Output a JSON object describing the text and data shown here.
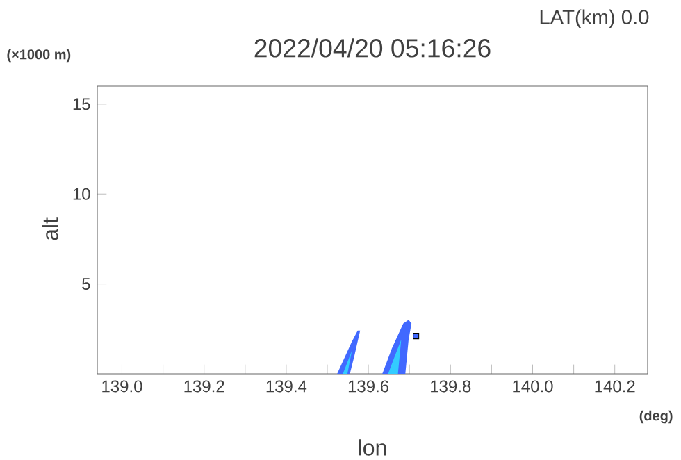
{
  "chart_data": {
    "type": "area",
    "title": "2022/04/20 05:16:26",
    "subtitle": "LAT(km) 0.0",
    "xlabel": "lon",
    "ylabel": "alt",
    "annotations": [
      "(×1000 m)",
      "(deg)"
    ],
    "xlim": [
      138.94,
      140.28
    ],
    "ylim": [
      0,
      16
    ],
    "xticks": [
      {
        "value": 139.0,
        "label": "139.0"
      },
      {
        "value": 139.1,
        "label": null
      },
      {
        "value": 139.2,
        "label": "139.2"
      },
      {
        "value": 139.3,
        "label": null
      },
      {
        "value": 139.4,
        "label": "139.4"
      },
      {
        "value": 139.5,
        "label": null
      },
      {
        "value": 139.6,
        "label": "139.6"
      },
      {
        "value": 139.7,
        "label": null
      },
      {
        "value": 139.8,
        "label": "139.8"
      },
      {
        "value": 139.9,
        "label": null
      },
      {
        "value": 140.0,
        "label": "140.0"
      },
      {
        "value": 140.1,
        "label": null
      },
      {
        "value": 140.2,
        "label": "140.2"
      }
    ],
    "yticks": [
      5,
      10,
      15
    ],
    "series": [
      {
        "color": "#4169ff",
        "x": [
          139.524,
          139.56,
          139.574,
          139.58,
          139.566,
          139.555
        ],
        "values": [
          0,
          1.8,
          2.4,
          2.4,
          1.0,
          0
        ]
      },
      {
        "color": "#4169ff",
        "x": [
          139.634,
          139.657,
          139.685,
          139.698,
          139.705,
          139.698,
          139.69
        ],
        "values": [
          0,
          1.4,
          2.8,
          3.0,
          2.8,
          1.9,
          0
        ]
      },
      {
        "type": "scatter",
        "marker": "square",
        "color": "#4169ff",
        "x": [
          139.716
        ],
        "values": [
          2.1
        ]
      },
      {
        "color": "#33ccff",
        "x": [
          139.538,
          139.549,
          139.56
        ],
        "values": [
          0,
          0,
          1.3
        ]
      },
      {
        "color": "#33ccff",
        "x": [
          139.648,
          139.672,
          139.68,
          139.668
        ],
        "values": [
          0,
          0,
          1.9,
          1.2
        ]
      }
    ]
  }
}
